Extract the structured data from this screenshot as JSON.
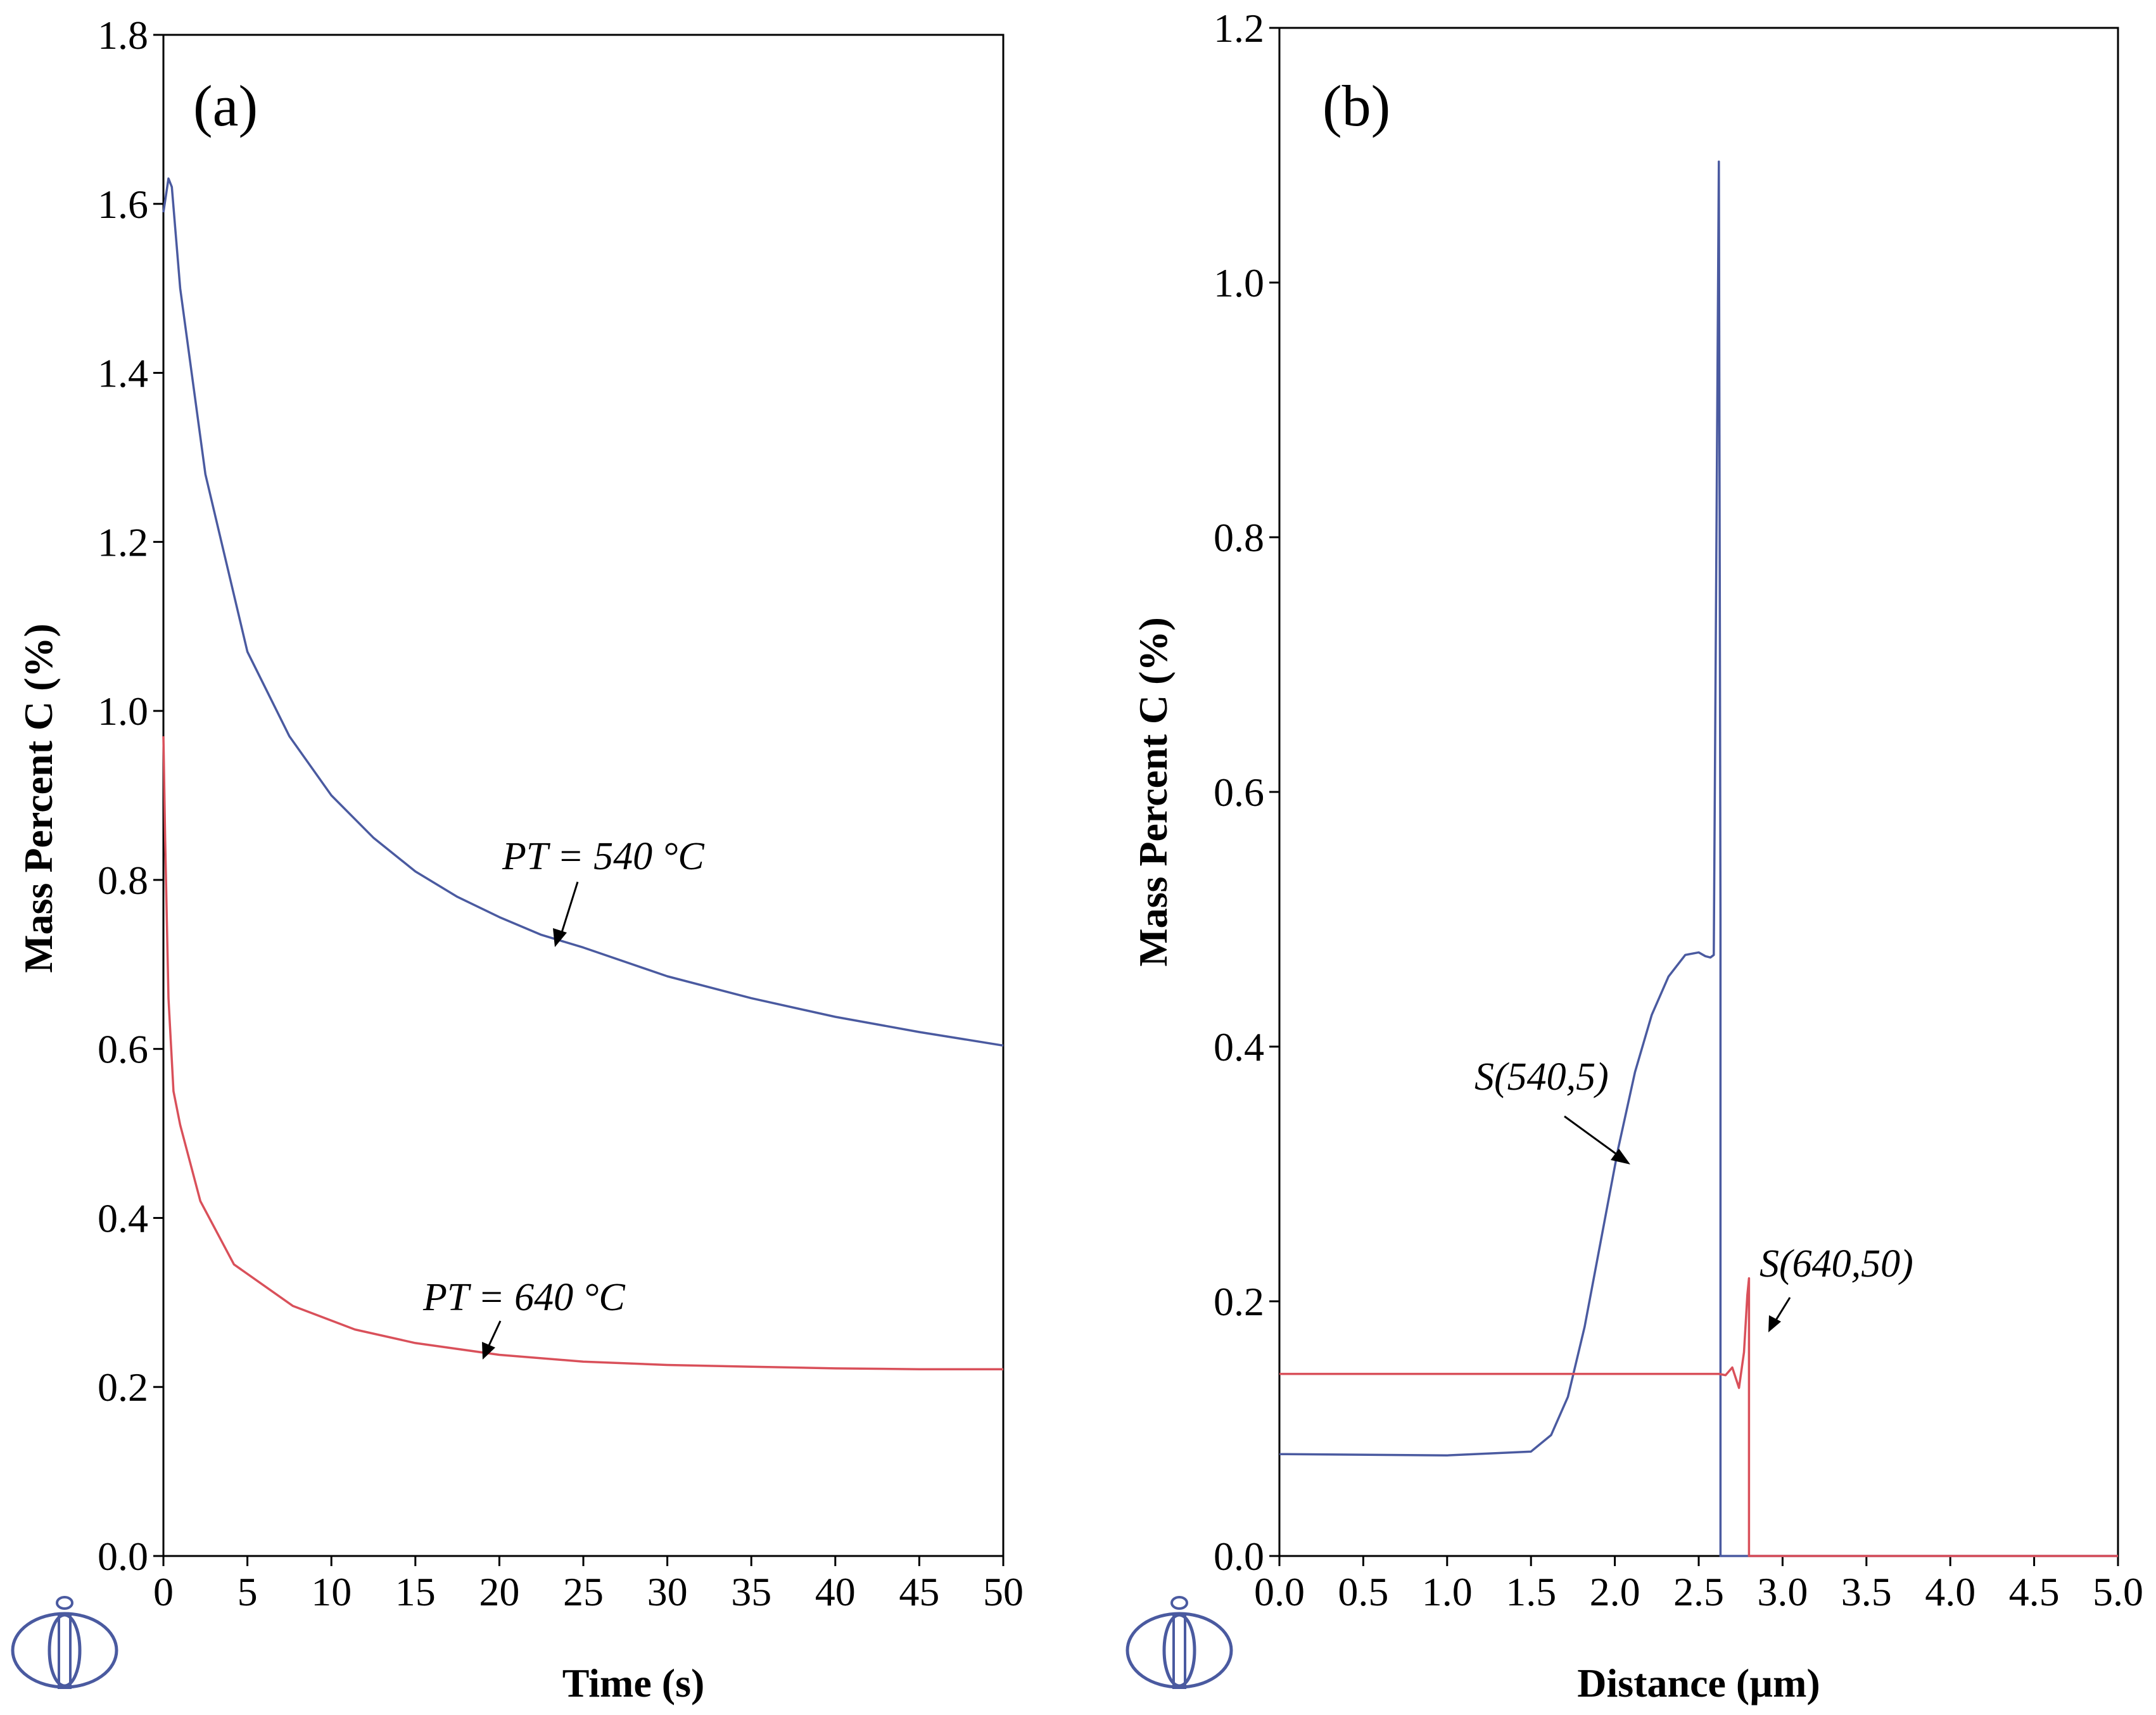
{
  "chart_data": [
    {
      "panel": "(a)",
      "type": "line",
      "xlabel": "Time (s)",
      "ylabel": "Mass Percent C (%)",
      "xlim": [
        0,
        50
      ],
      "ylim": [
        0,
        1.8
      ],
      "x_ticks": [
        0,
        5,
        10,
        15,
        20,
        25,
        30,
        35,
        40,
        45,
        50
      ],
      "y_ticks": [
        0.0,
        0.2,
        0.4,
        0.6,
        0.8,
        1.0,
        1.2,
        1.4,
        1.6,
        1.8
      ],
      "x_tick_labels": [
        "0",
        "5",
        "10",
        "15",
        "20",
        "25",
        "30",
        "35",
        "40",
        "45",
        "50"
      ],
      "y_tick_labels": [
        "0.0",
        "0.2",
        "0.4",
        "0.6",
        "0.8",
        "1.0",
        "1.2",
        "1.4",
        "1.6",
        "1.8"
      ],
      "series": [
        {
          "name": "PT = 540 °C",
          "color": "#4a5aa0",
          "x": [
            0,
            0.3,
            0.5,
            1,
            2.5,
            5,
            7.5,
            10,
            12.5,
            15,
            17.5,
            20,
            22.5,
            25,
            30,
            35,
            40,
            45,
            50
          ],
          "y": [
            1.59,
            1.63,
            1.62,
            1.5,
            1.28,
            1.07,
            0.97,
            0.9,
            0.85,
            0.81,
            0.78,
            0.756,
            0.735,
            0.72,
            0.686,
            0.66,
            0.638,
            0.62,
            0.604
          ]
        },
        {
          "name": "PT = 640 °C",
          "color": "#d9505a",
          "x": [
            0,
            0.1,
            0.3,
            0.6,
            1,
            2.2,
            4.2,
            7.7,
            11.4,
            15,
            20,
            25,
            30,
            35,
            40,
            45,
            50
          ],
          "y": [
            0.97,
            0.85,
            0.66,
            0.55,
            0.51,
            0.42,
            0.345,
            0.296,
            0.268,
            0.252,
            0.238,
            0.23,
            0.226,
            0.224,
            0.222,
            0.221,
            0.221
          ]
        }
      ],
      "annotations": [
        {
          "text": "PT = 540 °C",
          "target_x": 23.6,
          "target_y": 0.726
        },
        {
          "text": "PT = 640 °C",
          "target_x": 19.0,
          "target_y": 0.24
        }
      ]
    },
    {
      "panel": "(b)",
      "type": "line",
      "xlabel": "Distance (µm)",
      "ylabel": "Mass Percent C (%)",
      "xlim": [
        0,
        5
      ],
      "ylim": [
        0,
        1.2
      ],
      "x_ticks": [
        0,
        0.5,
        1,
        1.5,
        2,
        2.5,
        3,
        3.5,
        4,
        4.5,
        5
      ],
      "y_ticks": [
        0.0,
        0.2,
        0.4,
        0.6,
        0.8,
        1.0,
        1.2
      ],
      "x_tick_labels": [
        "0.0",
        "0.5",
        "1.0",
        "1.5",
        "2.0",
        "2.5",
        "3.0",
        "3.5",
        "4.0",
        "4.5",
        "5.0"
      ],
      "y_tick_labels": [
        "0.0",
        "0.2",
        "0.4",
        "0.6",
        "0.8",
        "1.0",
        "1.2"
      ],
      "series": [
        {
          "name": "S(540,5)",
          "color": "#4a5aa0",
          "x": [
            0,
            1.0,
            1.5,
            1.62,
            1.72,
            1.82,
            1.92,
            2.02,
            2.12,
            2.22,
            2.32,
            2.42,
            2.5,
            2.54,
            2.57,
            2.59,
            2.62,
            2.63,
            2.63,
            5.0
          ],
          "y": [
            0.08,
            0.079,
            0.082,
            0.095,
            0.125,
            0.18,
            0.25,
            0.32,
            0.38,
            0.425,
            0.455,
            0.472,
            0.474,
            0.471,
            0.47,
            0.472,
            1.095,
            0.5,
            0.0,
            0.0
          ]
        },
        {
          "name": "S(640,50)",
          "color": "#d9505a",
          "x": [
            0,
            2.62,
            2.66,
            2.7,
            2.74,
            2.77,
            2.79,
            2.8,
            2.8,
            5.0
          ],
          "y": [
            0.143,
            0.143,
            0.142,
            0.148,
            0.132,
            0.16,
            0.205,
            0.218,
            0.0,
            0.0
          ]
        }
      ],
      "annotations": [
        {
          "text": "S(540,5)",
          "target_x": 2.05,
          "target_y": 0.3
        },
        {
          "text": "S(640,50)",
          "target_x": 2.92,
          "target_y": 0.18
        }
      ]
    }
  ],
  "logo": {
    "name": "thermo-calc-logo",
    "color": "#4a5aa0"
  }
}
